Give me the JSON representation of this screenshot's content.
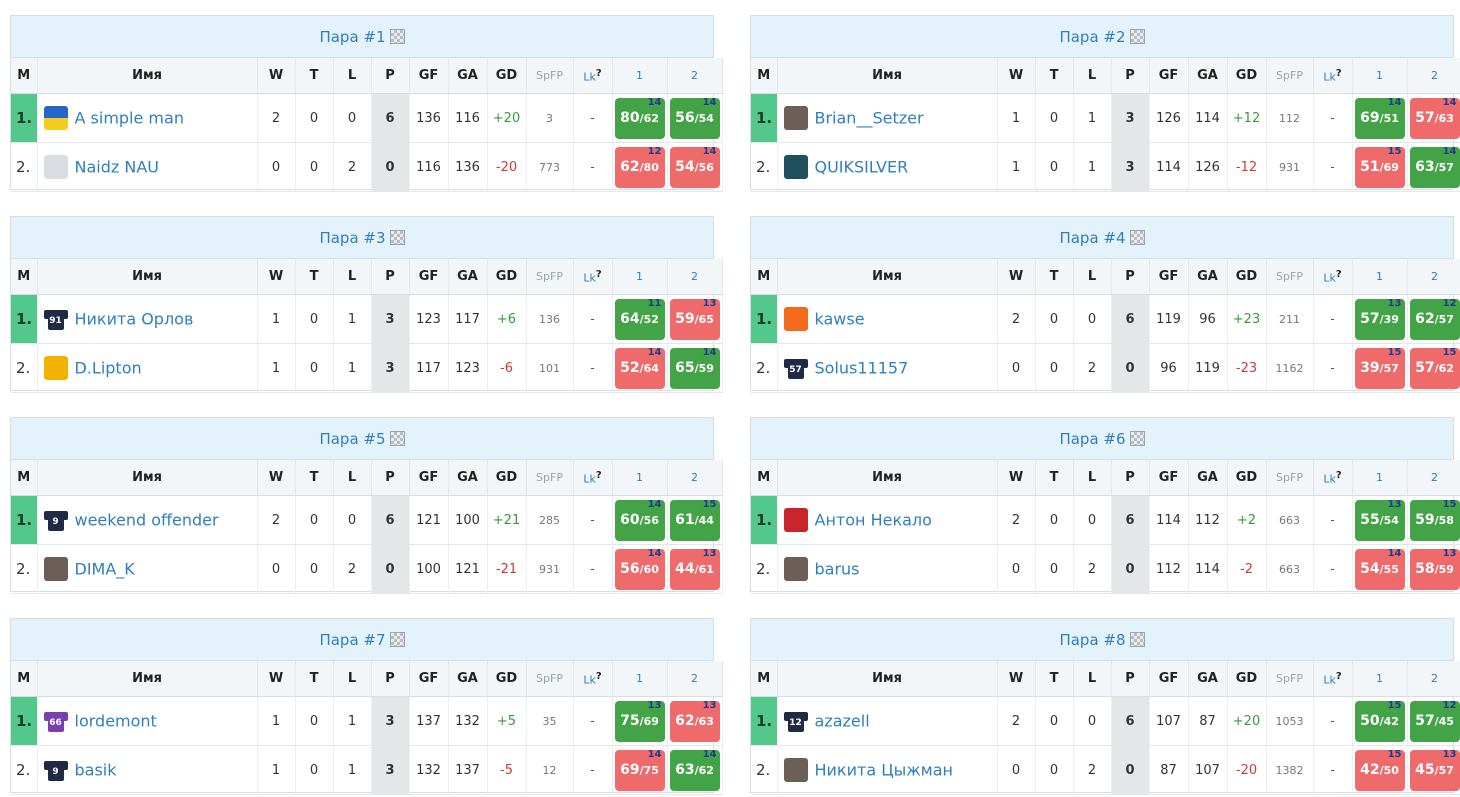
{
  "headers": {
    "m": "M",
    "name": "Имя",
    "w": "W",
    "t": "T",
    "l": "L",
    "p": "P",
    "gf": "GF",
    "ga": "GA",
    "gd": "GD",
    "spfp": "SpFP",
    "lk": "Lk",
    "lk_help": "?",
    "g1": "1",
    "g2": "2"
  },
  "colors": {
    "title_bg": "#e4f2fb",
    "leader_green": "#52c98a",
    "win_green": "#43a447",
    "loss_red": "#ef6b6b",
    "link_blue": "#2f7fbf",
    "game_no": "#1b3d8f"
  },
  "pairs": [
    {
      "title": "Пара #1",
      "rows": [
        {
          "pos": "1.",
          "name": "A simple man",
          "avatar": "ukraine-flag-avatar",
          "w": "2",
          "t": "0",
          "l": "0",
          "p": "6",
          "gf": "136",
          "ga": "116",
          "gd": "+20",
          "spfp": "3",
          "lk": "-",
          "g1": {
            "s": "80",
            "a": "62",
            "n": "14",
            "r": "win"
          },
          "g2": {
            "s": "56",
            "a": "54",
            "n": "14",
            "r": "win"
          }
        },
        {
          "pos": "2.",
          "name": "Naidz NAU",
          "avatar": "plane-avatar",
          "w": "0",
          "t": "0",
          "l": "2",
          "p": "0",
          "gf": "116",
          "ga": "136",
          "gd": "-20",
          "spfp": "773",
          "lk": "-",
          "g1": {
            "s": "62",
            "a": "80",
            "n": "12",
            "r": "loss"
          },
          "g2": {
            "s": "54",
            "a": "56",
            "n": "14",
            "r": "loss"
          }
        }
      ]
    },
    {
      "title": "Пара #2",
      "rows": [
        {
          "pos": "1.",
          "name": "Brian__Setzer",
          "avatar": "photo-avatar",
          "w": "1",
          "t": "0",
          "l": "1",
          "p": "3",
          "gf": "126",
          "ga": "114",
          "gd": "+12",
          "spfp": "112",
          "lk": "-",
          "g1": {
            "s": "69",
            "a": "51",
            "n": "14",
            "r": "win"
          },
          "g2": {
            "s": "57",
            "a": "63",
            "n": "14",
            "r": "loss"
          }
        },
        {
          "pos": "2.",
          "name": "QUIKSILVER",
          "avatar": "mountain-avatar",
          "w": "1",
          "t": "0",
          "l": "1",
          "p": "3",
          "gf": "114",
          "ga": "126",
          "gd": "-12",
          "spfp": "931",
          "lk": "-",
          "g1": {
            "s": "51",
            "a": "69",
            "n": "15",
            "r": "loss"
          },
          "g2": {
            "s": "63",
            "a": "57",
            "n": "14",
            "r": "win"
          }
        }
      ]
    },
    {
      "title": "Пара #3",
      "rows": [
        {
          "pos": "1.",
          "name": "Никита Орлов",
          "avatar": "jersey-avatar",
          "jersey_no": "91",
          "w": "1",
          "t": "0",
          "l": "1",
          "p": "3",
          "gf": "123",
          "ga": "117",
          "gd": "+6",
          "spfp": "136",
          "lk": "-",
          "g1": {
            "s": "64",
            "a": "52",
            "n": "11",
            "r": "win"
          },
          "g2": {
            "s": "59",
            "a": "65",
            "n": "13",
            "r": "loss"
          }
        },
        {
          "pos": "2.",
          "name": "D.Lipton",
          "avatar": "lipton-logo-avatar",
          "w": "1",
          "t": "0",
          "l": "1",
          "p": "3",
          "gf": "117",
          "ga": "123",
          "gd": "-6",
          "spfp": "101",
          "lk": "-",
          "g1": {
            "s": "52",
            "a": "64",
            "n": "14",
            "r": "loss"
          },
          "g2": {
            "s": "65",
            "a": "59",
            "n": "14",
            "r": "win"
          }
        }
      ]
    },
    {
      "title": "Пара #4",
      "rows": [
        {
          "pos": "1.",
          "name": "kawse",
          "avatar": "flyers-logo-avatar",
          "w": "2",
          "t": "0",
          "l": "0",
          "p": "6",
          "gf": "119",
          "ga": "96",
          "gd": "+23",
          "spfp": "211",
          "lk": "-",
          "g1": {
            "s": "57",
            "a": "39",
            "n": "13",
            "r": "win"
          },
          "g2": {
            "s": "62",
            "a": "57",
            "n": "12",
            "r": "win"
          }
        },
        {
          "pos": "2.",
          "name": "Solus11157",
          "avatar": "jersey-avatar",
          "jersey_no": "57",
          "w": "0",
          "t": "0",
          "l": "2",
          "p": "0",
          "gf": "96",
          "ga": "119",
          "gd": "-23",
          "spfp": "1162",
          "lk": "-",
          "g1": {
            "s": "39",
            "a": "57",
            "n": "15",
            "r": "loss"
          },
          "g2": {
            "s": "57",
            "a": "62",
            "n": "15",
            "r": "loss"
          }
        }
      ]
    },
    {
      "title": "Пара #5",
      "rows": [
        {
          "pos": "1.",
          "name": "weekend offender",
          "avatar": "jersey-avatar",
          "jersey_no": "9",
          "w": "2",
          "t": "0",
          "l": "0",
          "p": "6",
          "gf": "121",
          "ga": "100",
          "gd": "+21",
          "spfp": "285",
          "lk": "-",
          "g1": {
            "s": "60",
            "a": "56",
            "n": "14",
            "r": "win"
          },
          "g2": {
            "s": "61",
            "a": "44",
            "n": "15",
            "r": "win"
          }
        },
        {
          "pos": "2.",
          "name": "DIMA_K",
          "avatar": "photo-avatar",
          "w": "0",
          "t": "0",
          "l": "2",
          "p": "0",
          "gf": "100",
          "ga": "121",
          "gd": "-21",
          "spfp": "931",
          "lk": "-",
          "g1": {
            "s": "56",
            "a": "60",
            "n": "14",
            "r": "loss"
          },
          "g2": {
            "s": "44",
            "a": "61",
            "n": "13",
            "r": "loss"
          }
        }
      ]
    },
    {
      "title": "Пара #6",
      "rows": [
        {
          "pos": "1.",
          "name": "Антон Некало",
          "avatar": "team-logo-avatar",
          "w": "2",
          "t": "0",
          "l": "0",
          "p": "6",
          "gf": "114",
          "ga": "112",
          "gd": "+2",
          "spfp": "663",
          "lk": "-",
          "g1": {
            "s": "55",
            "a": "54",
            "n": "13",
            "r": "win"
          },
          "g2": {
            "s": "59",
            "a": "58",
            "n": "15",
            "r": "win"
          }
        },
        {
          "pos": "2.",
          "name": "barus",
          "avatar": "photo-avatar",
          "w": "0",
          "t": "0",
          "l": "2",
          "p": "0",
          "gf": "112",
          "ga": "114",
          "gd": "-2",
          "spfp": "663",
          "lk": "-",
          "g1": {
            "s": "54",
            "a": "55",
            "n": "14",
            "r": "loss"
          },
          "g2": {
            "s": "58",
            "a": "59",
            "n": "13",
            "r": "loss"
          }
        }
      ]
    },
    {
      "title": "Пара #7",
      "rows": [
        {
          "pos": "1.",
          "name": "lordemont",
          "avatar": "jersey-avatar",
          "jersey_no": "66",
          "w": "1",
          "t": "0",
          "l": "1",
          "p": "3",
          "gf": "137",
          "ga": "132",
          "gd": "+5",
          "spfp": "35",
          "lk": "-",
          "g1": {
            "s": "75",
            "a": "69",
            "n": "13",
            "r": "win"
          },
          "g2": {
            "s": "62",
            "a": "63",
            "n": "13",
            "r": "loss"
          }
        },
        {
          "pos": "2.",
          "name": "basik",
          "avatar": "jersey-avatar",
          "jersey_no": "9",
          "w": "1",
          "t": "0",
          "l": "1",
          "p": "3",
          "gf": "132",
          "ga": "137",
          "gd": "-5",
          "spfp": "12",
          "lk": "-",
          "g1": {
            "s": "69",
            "a": "75",
            "n": "14",
            "r": "loss"
          },
          "g2": {
            "s": "63",
            "a": "62",
            "n": "14",
            "r": "win"
          }
        }
      ]
    },
    {
      "title": "Пара #8",
      "rows": [
        {
          "pos": "1.",
          "name": "azazell",
          "avatar": "jersey-avatar",
          "jersey_no": "12",
          "w": "2",
          "t": "0",
          "l": "0",
          "p": "6",
          "gf": "107",
          "ga": "87",
          "gd": "+20",
          "spfp": "1053",
          "lk": "-",
          "g1": {
            "s": "50",
            "a": "42",
            "n": "15",
            "r": "win"
          },
          "g2": {
            "s": "57",
            "a": "45",
            "n": "12",
            "r": "win"
          }
        },
        {
          "pos": "2.",
          "name": "Никита Цыжман",
          "avatar": "photo-avatar",
          "w": "0",
          "t": "0",
          "l": "2",
          "p": "0",
          "gf": "87",
          "ga": "107",
          "gd": "-20",
          "spfp": "1382",
          "lk": "-",
          "g1": {
            "s": "42",
            "a": "50",
            "n": "15",
            "r": "loss"
          },
          "g2": {
            "s": "45",
            "a": "57",
            "n": "13",
            "r": "loss"
          }
        }
      ]
    }
  ]
}
